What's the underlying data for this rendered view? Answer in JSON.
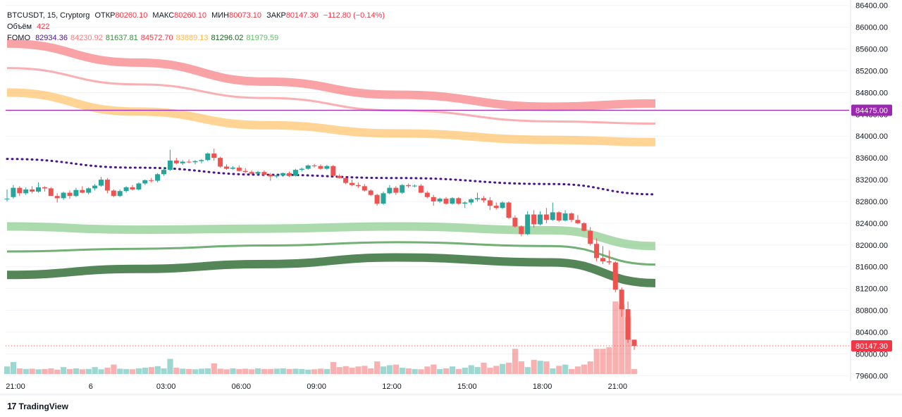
{
  "header": {
    "symbol": "BTCUSDT, 15, Cryptorg",
    "open_label": "ОТКР",
    "open": "80260.10",
    "high_label": "МАКС",
    "high": "80260.10",
    "low_label": "МИН",
    "low": "80073.10",
    "close_label": "ЗАКР",
    "close": "80147.30",
    "change": "−112.80 (−0.14%)"
  },
  "volume_row": {
    "label": "Объём",
    "value": "422"
  },
  "fomo_row": {
    "label": "FOMO",
    "values": [
      {
        "text": "82934.36",
        "color": "#4a148c"
      },
      {
        "text": "84230.92",
        "color": "#f77c80"
      },
      {
        "text": "81637.81",
        "color": "#388e3c"
      },
      {
        "text": "84572.70",
        "color": "#f23645"
      },
      {
        "text": "83889.13",
        "color": "#ffb74d"
      },
      {
        "text": "81296.02",
        "color": "#1b5e20"
      },
      {
        "text": "81979.59",
        "color": "#66bb6a"
      }
    ]
  },
  "branding": {
    "name": "TradingView"
  },
  "colors": {
    "up": "#26a69a",
    "down": "#ef5350",
    "level": "#9c27b0",
    "accent": "#f23645"
  },
  "chart_data": {
    "type": "candlestick",
    "symbol": "BTCUSDT",
    "interval": "15",
    "ylim": [
      79500,
      86500
    ],
    "y_ticks": [
      "86400.00",
      "86000.00",
      "85600.00",
      "85200.00",
      "84800.00",
      "84400.00",
      "84000.00",
      "83600.00",
      "83200.00",
      "82800.00",
      "82400.00",
      "82000.00",
      "81600.00",
      "81200.00",
      "80800.00",
      "80400.00",
      "80000.00",
      "79600.00"
    ],
    "x_tick_labels": [
      {
        "label": "21:00",
        "index": 0
      },
      {
        "label": "6",
        "index": 12
      },
      {
        "label": "03:00",
        "index": 24
      },
      {
        "label": "06:00",
        "index": 36
      },
      {
        "label": "09:00",
        "index": 48
      },
      {
        "label": "12:00",
        "index": 60
      },
      {
        "label": "15:00",
        "index": 72
      },
      {
        "label": "18:00",
        "index": 84
      },
      {
        "label": "21:00",
        "index": 96
      }
    ],
    "price_labels": [
      {
        "text": "84475.00",
        "value": 84475,
        "color": "#9c27b0"
      },
      {
        "text": "80147.30",
        "value": 80147.3,
        "color": "#f23645"
      }
    ],
    "horizontal_line": {
      "value": 84475,
      "color": "#9c27b0"
    },
    "candles": [
      {
        "o": 82850,
        "h": 83020,
        "l": 82800,
        "c": 82850
      },
      {
        "o": 82880,
        "h": 83100,
        "l": 82850,
        "c": 83050
      },
      {
        "o": 83050,
        "h": 83080,
        "l": 82900,
        "c": 82950
      },
      {
        "o": 82950,
        "h": 83060,
        "l": 82920,
        "c": 83020
      },
      {
        "o": 83020,
        "h": 83080,
        "l": 82950,
        "c": 82980
      },
      {
        "o": 82980,
        "h": 83150,
        "l": 82960,
        "c": 83060
      },
      {
        "o": 83060,
        "h": 83080,
        "l": 82980,
        "c": 83040
      },
      {
        "o": 83040,
        "h": 83060,
        "l": 82900,
        "c": 82900
      },
      {
        "o": 82900,
        "h": 82950,
        "l": 82780,
        "c": 82860
      },
      {
        "o": 82860,
        "h": 82980,
        "l": 82830,
        "c": 82960
      },
      {
        "o": 82960,
        "h": 83000,
        "l": 82850,
        "c": 82900
      },
      {
        "o": 82900,
        "h": 83050,
        "l": 82880,
        "c": 83010
      },
      {
        "o": 83010,
        "h": 83080,
        "l": 82950,
        "c": 82960
      },
      {
        "o": 82960,
        "h": 83060,
        "l": 82930,
        "c": 83040
      },
      {
        "o": 83040,
        "h": 83120,
        "l": 83000,
        "c": 83090
      },
      {
        "o": 83090,
        "h": 83250,
        "l": 83070,
        "c": 83200
      },
      {
        "o": 83200,
        "h": 83230,
        "l": 82950,
        "c": 83000
      },
      {
        "o": 83000,
        "h": 83020,
        "l": 82880,
        "c": 82900
      },
      {
        "o": 82900,
        "h": 83020,
        "l": 82880,
        "c": 82990
      },
      {
        "o": 82990,
        "h": 83080,
        "l": 82960,
        "c": 83060
      },
      {
        "o": 83060,
        "h": 83100,
        "l": 83000,
        "c": 83020
      },
      {
        "o": 83020,
        "h": 83150,
        "l": 83000,
        "c": 83130
      },
      {
        "o": 83130,
        "h": 83200,
        "l": 83100,
        "c": 83190
      },
      {
        "o": 83190,
        "h": 83230,
        "l": 83150,
        "c": 83180
      },
      {
        "o": 83180,
        "h": 83320,
        "l": 83150,
        "c": 83300
      },
      {
        "o": 83300,
        "h": 83420,
        "l": 83270,
        "c": 83380
      },
      {
        "o": 83380,
        "h": 83750,
        "l": 83360,
        "c": 83550
      },
      {
        "o": 83550,
        "h": 83600,
        "l": 83480,
        "c": 83500
      },
      {
        "o": 83500,
        "h": 83560,
        "l": 83470,
        "c": 83530
      },
      {
        "o": 83530,
        "h": 83570,
        "l": 83500,
        "c": 83520
      },
      {
        "o": 83520,
        "h": 83560,
        "l": 83480,
        "c": 83540
      },
      {
        "o": 83540,
        "h": 83580,
        "l": 83500,
        "c": 83560
      },
      {
        "o": 83560,
        "h": 83700,
        "l": 83540,
        "c": 83680
      },
      {
        "o": 83680,
        "h": 83770,
        "l": 83550,
        "c": 83600
      },
      {
        "o": 83600,
        "h": 83620,
        "l": 83420,
        "c": 83440
      },
      {
        "o": 83440,
        "h": 83480,
        "l": 83380,
        "c": 83400
      },
      {
        "o": 83400,
        "h": 83450,
        "l": 83380,
        "c": 83420
      },
      {
        "o": 83420,
        "h": 83460,
        "l": 83350,
        "c": 83360
      },
      {
        "o": 83360,
        "h": 83410,
        "l": 83320,
        "c": 83340
      },
      {
        "o": 83340,
        "h": 83370,
        "l": 83300,
        "c": 83310
      },
      {
        "o": 83310,
        "h": 83360,
        "l": 83290,
        "c": 83340
      },
      {
        "o": 83340,
        "h": 83370,
        "l": 83260,
        "c": 83290
      },
      {
        "o": 83290,
        "h": 83320,
        "l": 83180,
        "c": 83260
      },
      {
        "o": 83260,
        "h": 83300,
        "l": 83230,
        "c": 83280
      },
      {
        "o": 83280,
        "h": 83330,
        "l": 83250,
        "c": 83320
      },
      {
        "o": 83320,
        "h": 83350,
        "l": 83250,
        "c": 83270
      },
      {
        "o": 83270,
        "h": 83400,
        "l": 83260,
        "c": 83380
      },
      {
        "o": 83380,
        "h": 83420,
        "l": 83350,
        "c": 83400
      },
      {
        "o": 83400,
        "h": 83480,
        "l": 83380,
        "c": 83460
      },
      {
        "o": 83460,
        "h": 83490,
        "l": 83420,
        "c": 83450
      },
      {
        "o": 83450,
        "h": 83480,
        "l": 83380,
        "c": 83400
      },
      {
        "o": 83400,
        "h": 83470,
        "l": 83380,
        "c": 83450
      },
      {
        "o": 83450,
        "h": 83470,
        "l": 83260,
        "c": 83270
      },
      {
        "o": 83270,
        "h": 83300,
        "l": 83220,
        "c": 83230
      },
      {
        "o": 83230,
        "h": 83260,
        "l": 83120,
        "c": 83140
      },
      {
        "o": 83140,
        "h": 83200,
        "l": 83080,
        "c": 83100
      },
      {
        "o": 83100,
        "h": 83150,
        "l": 83050,
        "c": 83080
      },
      {
        "o": 83080,
        "h": 83120,
        "l": 82980,
        "c": 83000
      },
      {
        "o": 83000,
        "h": 83020,
        "l": 82900,
        "c": 82920
      },
      {
        "o": 82920,
        "h": 82940,
        "l": 82720,
        "c": 82760
      },
      {
        "o": 82760,
        "h": 82980,
        "l": 82740,
        "c": 82950
      },
      {
        "o": 82950,
        "h": 83100,
        "l": 82930,
        "c": 83050
      },
      {
        "o": 83050,
        "h": 83080,
        "l": 82920,
        "c": 82960
      },
      {
        "o": 82960,
        "h": 83120,
        "l": 82940,
        "c": 83100
      },
      {
        "o": 83100,
        "h": 83130,
        "l": 83050,
        "c": 83080
      },
      {
        "o": 83080,
        "h": 83110,
        "l": 83060,
        "c": 83090
      },
      {
        "o": 83090,
        "h": 83120,
        "l": 82950,
        "c": 82960
      },
      {
        "o": 82960,
        "h": 82990,
        "l": 82860,
        "c": 82880
      },
      {
        "o": 82880,
        "h": 82920,
        "l": 82720,
        "c": 82800
      },
      {
        "o": 82800,
        "h": 82870,
        "l": 82770,
        "c": 82850
      },
      {
        "o": 82850,
        "h": 82880,
        "l": 82740,
        "c": 82760
      },
      {
        "o": 82760,
        "h": 82880,
        "l": 82740,
        "c": 82860
      },
      {
        "o": 82860,
        "h": 82880,
        "l": 82740,
        "c": 82760
      },
      {
        "o": 82760,
        "h": 82800,
        "l": 82680,
        "c": 82780
      },
      {
        "o": 82780,
        "h": 82860,
        "l": 82740,
        "c": 82840
      },
      {
        "o": 82840,
        "h": 82960,
        "l": 82800,
        "c": 82860
      },
      {
        "o": 82860,
        "h": 82900,
        "l": 82780,
        "c": 82820
      },
      {
        "o": 82820,
        "h": 82880,
        "l": 82640,
        "c": 82720
      },
      {
        "o": 82720,
        "h": 82780,
        "l": 82650,
        "c": 82680
      },
      {
        "o": 82680,
        "h": 82800,
        "l": 82660,
        "c": 82780
      },
      {
        "o": 82780,
        "h": 82800,
        "l": 82480,
        "c": 82500
      },
      {
        "o": 82500,
        "h": 82540,
        "l": 82320,
        "c": 82340
      },
      {
        "o": 82340,
        "h": 82360,
        "l": 82160,
        "c": 82200
      },
      {
        "o": 82200,
        "h": 82620,
        "l": 82180,
        "c": 82560
      },
      {
        "o": 82560,
        "h": 82640,
        "l": 82320,
        "c": 82380
      },
      {
        "o": 82380,
        "h": 82620,
        "l": 82360,
        "c": 82560
      },
      {
        "o": 82560,
        "h": 82680,
        "l": 82400,
        "c": 82460
      },
      {
        "o": 82460,
        "h": 82780,
        "l": 82440,
        "c": 82600
      },
      {
        "o": 82600,
        "h": 82620,
        "l": 82420,
        "c": 82450
      },
      {
        "o": 82450,
        "h": 82640,
        "l": 82430,
        "c": 82580
      },
      {
        "o": 82580,
        "h": 82600,
        "l": 82420,
        "c": 82460
      },
      {
        "o": 82460,
        "h": 82550,
        "l": 82380,
        "c": 82400
      },
      {
        "o": 82400,
        "h": 82420,
        "l": 82250,
        "c": 82260
      },
      {
        "o": 82260,
        "h": 82330,
        "l": 81990,
        "c": 82020
      },
      {
        "o": 82020,
        "h": 82120,
        "l": 81700,
        "c": 81760
      },
      {
        "o": 81760,
        "h": 81980,
        "l": 81650,
        "c": 81700
      },
      {
        "o": 81700,
        "h": 81900,
        "l": 81640,
        "c": 81680
      },
      {
        "o": 81680,
        "h": 81700,
        "l": 81130,
        "c": 81180
      },
      {
        "o": 81180,
        "h": 81220,
        "l": 80680,
        "c": 80820
      },
      {
        "o": 80820,
        "h": 80960,
        "l": 80200,
        "c": 80260
      },
      {
        "o": 80260,
        "h": 80260,
        "l": 80073,
        "c": 80147
      }
    ],
    "volumes": [
      24,
      38,
      18,
      16,
      17,
      15,
      16,
      18,
      14,
      22,
      16,
      18,
      15,
      16,
      22,
      15,
      20,
      30,
      17,
      16,
      15,
      18,
      20,
      22,
      25,
      18,
      48,
      20,
      17,
      16,
      15,
      17,
      18,
      34,
      17,
      15,
      18,
      16,
      17,
      15,
      18,
      16,
      16,
      17,
      18,
      16,
      17,
      16,
      14,
      15,
      17,
      16,
      38,
      22,
      25,
      20,
      24,
      26,
      18,
      40,
      24,
      28,
      30,
      20,
      18,
      16,
      15,
      24,
      30,
      16,
      18,
      24,
      16,
      20,
      28,
      22,
      36,
      20,
      26,
      32,
      36,
      80,
      40,
      22,
      45,
      42,
      40,
      18,
      26,
      30,
      16,
      24,
      30,
      40,
      80,
      80,
      85,
      230,
      220,
      180,
      16
    ],
    "volume_ylim": [
      0,
      250
    ],
    "bands": [
      {
        "name": "",
        "color": "#f77c80",
        "opacity": 0.7,
        "width": 12,
        "points": [
          [
            0,
            85700
          ],
          [
            20,
            85350
          ],
          [
            40,
            85000
          ],
          [
            60,
            84760
          ],
          [
            84,
            84540
          ],
          [
            100,
            84600
          ]
        ]
      },
      {
        "name": "",
        "color": "#f77c80",
        "opacity": 0.6,
        "width": 3,
        "points": [
          [
            0,
            85250
          ],
          [
            20,
            84950
          ],
          [
            40,
            84700
          ],
          [
            60,
            84470
          ],
          [
            84,
            84270
          ],
          [
            100,
            84230
          ]
        ]
      },
      {
        "name": "",
        "color": "#ffb74d",
        "opacity": 0.6,
        "width": 12,
        "points": [
          [
            0,
            84800
          ],
          [
            20,
            84450
          ],
          [
            40,
            84200
          ],
          [
            60,
            84050
          ],
          [
            84,
            83930
          ],
          [
            100,
            83890
          ]
        ]
      },
      {
        "name": "",
        "color": "#4a148c",
        "opacity": 1.0,
        "width": 3,
        "dotted": true,
        "points": [
          [
            0,
            83580
          ],
          [
            20,
            83420
          ],
          [
            40,
            83290
          ],
          [
            60,
            83230
          ],
          [
            84,
            83120
          ],
          [
            100,
            82930
          ]
        ]
      },
      {
        "name": "",
        "color": "#66bb6a",
        "opacity": 0.55,
        "width": 12,
        "points": [
          [
            0,
            82340
          ],
          [
            20,
            82280
          ],
          [
            40,
            82300
          ],
          [
            60,
            82340
          ],
          [
            84,
            82270
          ],
          [
            100,
            81980
          ]
        ]
      },
      {
        "name": "",
        "color": "#388e3c",
        "opacity": 0.7,
        "width": 3,
        "points": [
          [
            0,
            81880
          ],
          [
            20,
            81930
          ],
          [
            40,
            81990
          ],
          [
            60,
            82050
          ],
          [
            84,
            81980
          ],
          [
            100,
            81640
          ]
        ]
      },
      {
        "name": "",
        "color": "#1b5e20",
        "opacity": 0.75,
        "width": 12,
        "points": [
          [
            0,
            81450
          ],
          [
            20,
            81560
          ],
          [
            40,
            81650
          ],
          [
            60,
            81770
          ],
          [
            84,
            81680
          ],
          [
            100,
            81300
          ]
        ]
      }
    ]
  }
}
